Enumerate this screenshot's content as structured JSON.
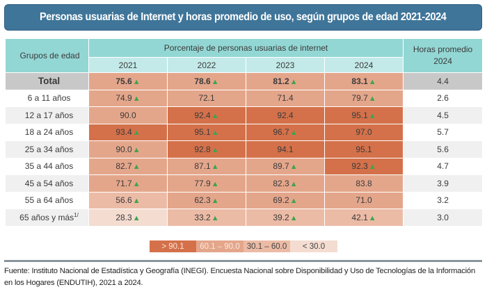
{
  "title": "Personas usuarias de Internet y horas promedio de uso, según grupos de edad 2021-2024",
  "header": {
    "group_label": "Grupos de edad",
    "percent_label": "Porcentaje de personas usuarias de internet",
    "years": [
      "2021",
      "2022",
      "2023",
      "2024"
    ],
    "hours_label_line1": "Horas promedio",
    "hours_label_line2": "2024"
  },
  "indicator_icon": "▲",
  "rows": [
    {
      "label": "Total",
      "values": [
        {
          "v": "75.6",
          "up": true,
          "band": 2
        },
        {
          "v": "78.6",
          "up": true,
          "band": 2
        },
        {
          "v": "81.2",
          "up": true,
          "band": 2
        },
        {
          "v": "83.1",
          "up": true,
          "band": 2
        }
      ],
      "hours": "4.4"
    },
    {
      "label": "6 a 11 años",
      "values": [
        {
          "v": "74.9",
          "up": true,
          "band": 2
        },
        {
          "v": "72.1",
          "up": false,
          "band": 2
        },
        {
          "v": "71.4",
          "up": false,
          "band": 2
        },
        {
          "v": "79.7",
          "up": true,
          "band": 2
        }
      ],
      "hours": "2.6"
    },
    {
      "label": "12 a 17 años",
      "values": [
        {
          "v": "90.0",
          "up": false,
          "band": 2
        },
        {
          "v": "92.4",
          "up": true,
          "band": 1
        },
        {
          "v": "92.4",
          "up": false,
          "band": 1
        },
        {
          "v": "95.1",
          "up": true,
          "band": 1
        }
      ],
      "hours": "4.5"
    },
    {
      "label": "18 a 24 años",
      "values": [
        {
          "v": "93.4",
          "up": true,
          "band": 1
        },
        {
          "v": "95.1",
          "up": true,
          "band": 1
        },
        {
          "v": "96.7",
          "up": true,
          "band": 1
        },
        {
          "v": "97.0",
          "up": false,
          "band": 1
        }
      ],
      "hours": "5.7"
    },
    {
      "label": "25 a 34 años",
      "values": [
        {
          "v": "90.0",
          "up": true,
          "band": 2
        },
        {
          "v": "92.8",
          "up": true,
          "band": 1
        },
        {
          "v": "94.1",
          "up": false,
          "band": 1
        },
        {
          "v": "95.1",
          "up": false,
          "band": 1
        }
      ],
      "hours": "5.6"
    },
    {
      "label": "35 a 44 años",
      "values": [
        {
          "v": "82.7",
          "up": true,
          "band": 2
        },
        {
          "v": "87.1",
          "up": true,
          "band": 2
        },
        {
          "v": "89.7",
          "up": true,
          "band": 2
        },
        {
          "v": "92.3",
          "up": true,
          "band": 1
        }
      ],
      "hours": "4.7"
    },
    {
      "label": "45 a 54 años",
      "values": [
        {
          "v": "71.7",
          "up": true,
          "band": 2
        },
        {
          "v": "77.9",
          "up": true,
          "band": 2
        },
        {
          "v": "82.3",
          "up": true,
          "band": 2
        },
        {
          "v": "83.8",
          "up": false,
          "band": 2
        }
      ],
      "hours": "3.9"
    },
    {
      "label": "55 a 64 años",
      "values": [
        {
          "v": "56.6",
          "up": true,
          "band": 3
        },
        {
          "v": "62.3",
          "up": true,
          "band": 2
        },
        {
          "v": "69.2",
          "up": true,
          "band": 2
        },
        {
          "v": "71.0",
          "up": false,
          "band": 2
        }
      ],
      "hours": "3.2"
    },
    {
      "label": "65 años y más",
      "sup": "1/",
      "values": [
        {
          "v": "28.3",
          "up": true,
          "band": 4
        },
        {
          "v": "33.2",
          "up": true,
          "band": 3
        },
        {
          "v": "39.2",
          "up": true,
          "band": 3
        },
        {
          "v": "42.1",
          "up": true,
          "band": 3
        }
      ],
      "hours": "3.0"
    }
  ],
  "legend": [
    {
      "label": "> 90.1",
      "color": "#d4714a"
    },
    {
      "label": "60.1 – 90.0",
      "color": "#e4a68b"
    },
    {
      "label": "30.1 – 60.0",
      "color": "#ecbba6"
    },
    {
      "label": "< 30.0",
      "color": "#f4dcd1"
    }
  ],
  "colors": {
    "title_bg": "#3f7599",
    "header_bg": "#93d7d4",
    "year_header_bg": "#c3eae8",
    "up_indicator": "#3ea44f"
  },
  "footer": "Fuente: Instituto Nacional de Estadística y Geografía (INEGI). Encuesta Nacional sobre Disponibilidad y Uso de Tecnologías de la Información en los Hogares (ENDUTIH), 2021 a 2024."
}
